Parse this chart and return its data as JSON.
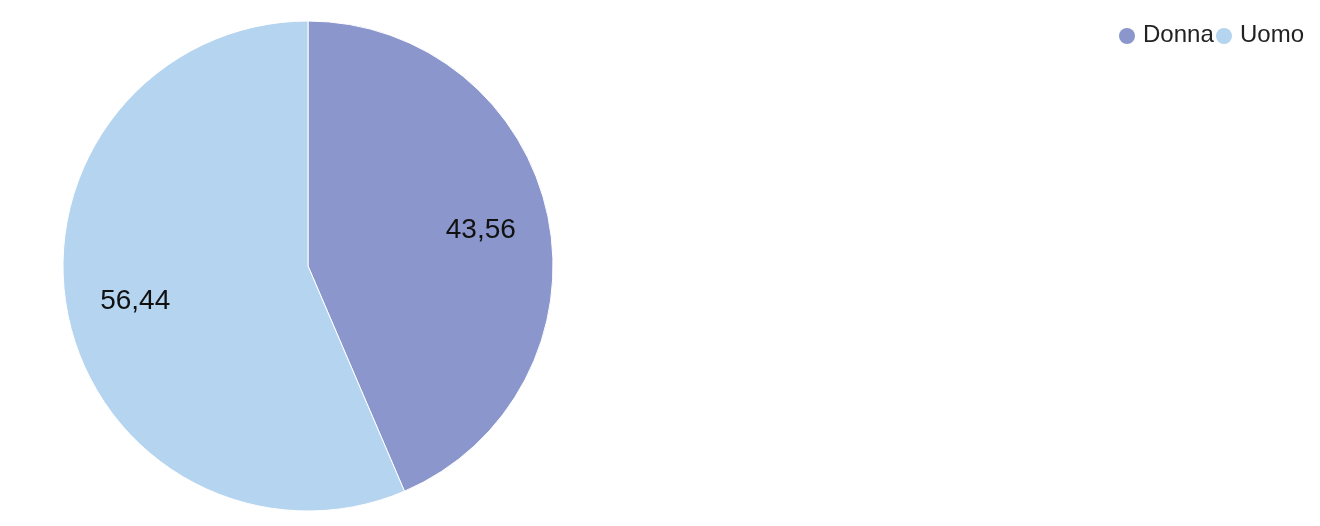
{
  "chart_data": {
    "type": "pie",
    "categories": [
      "Donna",
      "Uomo"
    ],
    "values": [
      43.56,
      56.44
    ],
    "colors": [
      "#8a96cc",
      "#b4d4f0"
    ],
    "value_labels": [
      "43,56",
      "56,44"
    ],
    "legend": "top right"
  }
}
